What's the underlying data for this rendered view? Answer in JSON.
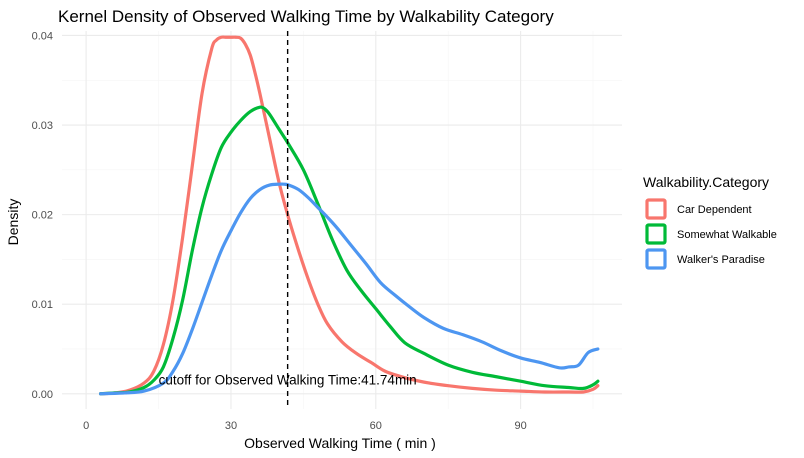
{
  "chart_data": {
    "type": "line",
    "title": "Kernel Density of Observed Walking Time by Walkability Category",
    "xlabel": "Observed Walking Time ( min )",
    "ylabel": "Density",
    "xlim": [
      -5,
      111
    ],
    "ylim": [
      -0.0017,
      0.0405
    ],
    "x_ticks": [
      0,
      30,
      60,
      90
    ],
    "x_tick_labels": [
      "0",
      "30",
      "60",
      "90"
    ],
    "y_ticks": [
      0.0,
      0.01,
      0.02,
      0.03,
      0.04
    ],
    "y_tick_labels": [
      "0.00",
      "0.01",
      "0.02",
      "0.03",
      "0.04"
    ],
    "grid": true,
    "legend": {
      "title": "Walkability.Category",
      "position": "right"
    },
    "vline": {
      "x": 41.74,
      "style": "dashed",
      "label": "cutoff for Observed Walking Time:41.74min",
      "label_y": 0.0015
    },
    "series": [
      {
        "name": "Car Dependent",
        "color": "#F8766D",
        "x": [
          3,
          6,
          9,
          12,
          14,
          16,
          18,
          20,
          22,
          24,
          26,
          27,
          28,
          29,
          30,
          31,
          32,
          33,
          34,
          35,
          36,
          38,
          40,
          42,
          44,
          46,
          48,
          50,
          53,
          56,
          59,
          62,
          66,
          70,
          75,
          80,
          85,
          90,
          95,
          100,
          103,
          105,
          106
        ],
        "y": [
          0.0,
          0.0001,
          0.0004,
          0.0012,
          0.0025,
          0.0055,
          0.0105,
          0.0175,
          0.0255,
          0.0335,
          0.0385,
          0.0395,
          0.0398,
          0.0398,
          0.0398,
          0.0398,
          0.0397,
          0.039,
          0.0378,
          0.0358,
          0.0335,
          0.0285,
          0.0235,
          0.0195,
          0.016,
          0.0128,
          0.01,
          0.0078,
          0.0058,
          0.0045,
          0.0035,
          0.0025,
          0.0018,
          0.0013,
          0.0009,
          0.0006,
          0.0004,
          0.0003,
          0.0002,
          0.0002,
          0.0002,
          0.0005,
          0.0009
        ]
      },
      {
        "name": "Somewhat Walkable",
        "color": "#00BA38",
        "x": [
          3,
          6,
          9,
          12,
          14,
          16,
          18,
          20,
          22,
          24,
          26,
          28,
          30,
          32,
          34,
          36,
          37,
          38,
          40,
          42,
          45,
          48,
          51,
          54,
          57,
          60,
          63,
          66,
          70,
          75,
          80,
          85,
          90,
          95,
          100,
          103,
          105,
          106
        ],
        "y": [
          0.0,
          0.0001,
          0.0002,
          0.0007,
          0.0015,
          0.003,
          0.0062,
          0.0105,
          0.016,
          0.0208,
          0.0245,
          0.0275,
          0.0292,
          0.0305,
          0.0315,
          0.032,
          0.0318,
          0.0312,
          0.0295,
          0.0278,
          0.025,
          0.0212,
          0.0172,
          0.0138,
          0.0115,
          0.0095,
          0.0075,
          0.0057,
          0.0045,
          0.0032,
          0.0024,
          0.0019,
          0.0014,
          0.0009,
          0.0007,
          0.0006,
          0.001,
          0.0014
        ]
      },
      {
        "name": "Walker's Paradise",
        "color": "#4D96F1",
        "x": [
          3,
          8,
          12,
          16,
          18,
          20,
          22,
          24,
          26,
          28,
          30,
          32,
          34,
          36,
          38,
          40,
          41,
          42,
          44,
          46,
          48,
          50,
          52,
          55,
          58,
          61,
          64,
          67,
          70,
          74,
          78,
          82,
          86,
          90,
          94,
          98,
          100,
          102,
          104,
          106
        ],
        "y": [
          0.0,
          0.0001,
          0.0003,
          0.0012,
          0.0025,
          0.0045,
          0.0072,
          0.0102,
          0.0132,
          0.016,
          0.0182,
          0.0202,
          0.0218,
          0.0228,
          0.0233,
          0.0234,
          0.0234,
          0.0233,
          0.0228,
          0.0219,
          0.0208,
          0.0197,
          0.0185,
          0.0165,
          0.0145,
          0.0124,
          0.011,
          0.0097,
          0.0085,
          0.0073,
          0.0066,
          0.0058,
          0.0048,
          0.004,
          0.0035,
          0.0029,
          0.003,
          0.0032,
          0.0046,
          0.005
        ]
      }
    ]
  }
}
